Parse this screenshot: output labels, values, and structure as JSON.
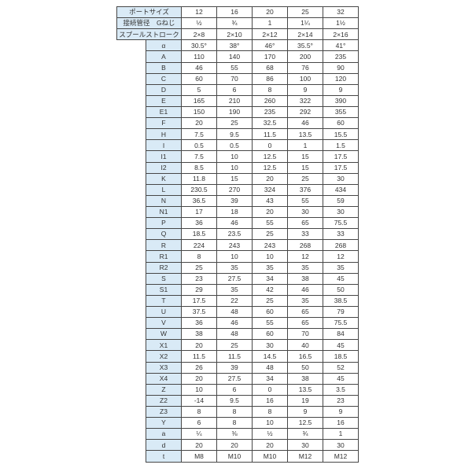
{
  "page": {
    "background": "#ffffff"
  },
  "table": {
    "border_color": "#474747",
    "label_background": "#d9eaf6",
    "text_color": "#333333",
    "header_rows": [
      {
        "label": "ポートサイズ",
        "values": [
          "12",
          "16",
          "20",
          "25",
          "32"
        ]
      },
      {
        "label": "接続管径　Gねじ",
        "values": [
          "½",
          "¾",
          "1",
          "1¼",
          "1½"
        ]
      },
      {
        "label": "スプールストローク",
        "values": [
          "2×8",
          "2×10",
          "2×12",
          "2×14",
          "2×16"
        ]
      }
    ],
    "rows": [
      {
        "label": "α",
        "values": [
          "30.5°",
          "38°",
          "46°",
          "35.5°",
          "41°"
        ]
      },
      {
        "label": "A",
        "values": [
          "110",
          "140",
          "170",
          "200",
          "235"
        ]
      },
      {
        "label": "B",
        "values": [
          "46",
          "55",
          "68",
          "76",
          "90"
        ]
      },
      {
        "label": "C",
        "values": [
          "60",
          "70",
          "86",
          "100",
          "120"
        ]
      },
      {
        "label": "D",
        "values": [
          "5",
          "6",
          "8",
          "9",
          "9"
        ]
      },
      {
        "label": "E",
        "values": [
          "165",
          "210",
          "260",
          "322",
          "390"
        ]
      },
      {
        "label": "E1",
        "values": [
          "150",
          "190",
          "235",
          "292",
          "355"
        ]
      },
      {
        "label": "F",
        "values": [
          "20",
          "25",
          "32.5",
          "46",
          "60"
        ]
      },
      {
        "label": "H",
        "values": [
          "7.5",
          "9.5",
          "11.5",
          "13.5",
          "15.5"
        ]
      },
      {
        "label": "I",
        "values": [
          "0.5",
          "0.5",
          "0",
          "1",
          "1.5"
        ]
      },
      {
        "label": "I1",
        "values": [
          "7.5",
          "10",
          "12.5",
          "15",
          "17.5"
        ]
      },
      {
        "label": "I2",
        "values": [
          "8.5",
          "10",
          "12.5",
          "15",
          "17.5"
        ]
      },
      {
        "label": "K",
        "values": [
          "11.8",
          "15",
          "20",
          "25",
          "30"
        ]
      },
      {
        "label": "L",
        "values": [
          "230.5",
          "270",
          "324",
          "376",
          "434"
        ]
      },
      {
        "label": "N",
        "values": [
          "36.5",
          "39",
          "43",
          "55",
          "59"
        ]
      },
      {
        "label": "N1",
        "values": [
          "17",
          "18",
          "20",
          "30",
          "30"
        ]
      },
      {
        "label": "P",
        "values": [
          "36",
          "46",
          "55",
          "65",
          "75.5"
        ]
      },
      {
        "label": "Q",
        "values": [
          "18.5",
          "23.5",
          "25",
          "33",
          "33"
        ]
      },
      {
        "label": "R",
        "values": [
          "224",
          "243",
          "243",
          "268",
          "268"
        ]
      },
      {
        "label": "R1",
        "values": [
          "8",
          "10",
          "10",
          "12",
          "12"
        ]
      },
      {
        "label": "R2",
        "values": [
          "25",
          "35",
          "35",
          "35",
          "35"
        ]
      },
      {
        "label": "S",
        "values": [
          "23",
          "27.5",
          "34",
          "38",
          "45"
        ]
      },
      {
        "label": "S1",
        "values": [
          "29",
          "35",
          "42",
          "46",
          "50"
        ]
      },
      {
        "label": "T",
        "values": [
          "17.5",
          "22",
          "25",
          "35",
          "38.5"
        ]
      },
      {
        "label": "U",
        "values": [
          "37.5",
          "48",
          "60",
          "65",
          "79"
        ]
      },
      {
        "label": "V",
        "values": [
          "36",
          "46",
          "55",
          "65",
          "75.5"
        ]
      },
      {
        "label": "W",
        "values": [
          "38",
          "48",
          "60",
          "70",
          "84"
        ]
      },
      {
        "label": "X1",
        "values": [
          "20",
          "25",
          "30",
          "40",
          "45"
        ]
      },
      {
        "label": "X2",
        "values": [
          "11.5",
          "11.5",
          "14.5",
          "16.5",
          "18.5"
        ]
      },
      {
        "label": "X3",
        "values": [
          "26",
          "39",
          "48",
          "50",
          "52"
        ]
      },
      {
        "label": "X4",
        "values": [
          "20",
          "27.5",
          "34",
          "38",
          "45"
        ]
      },
      {
        "label": "Z",
        "values": [
          "10",
          "6",
          "0",
          "13.5",
          "3.5"
        ]
      },
      {
        "label": "Z2",
        "values": [
          "-14",
          "9.5",
          "16",
          "19",
          "23"
        ]
      },
      {
        "label": "Z3",
        "values": [
          "8",
          "8",
          "8",
          "9",
          "9"
        ]
      },
      {
        "label": "Y",
        "values": [
          "6",
          "8",
          "10",
          "12.5",
          "16"
        ]
      },
      {
        "label": "a",
        "values": [
          "¼",
          "⅜",
          "½",
          "¾",
          "1"
        ]
      },
      {
        "label": "d",
        "values": [
          "20",
          "20",
          "20",
          "30",
          "30"
        ]
      },
      {
        "label": "t",
        "values": [
          "M8",
          "M10",
          "M10",
          "M12",
          "M12"
        ]
      }
    ]
  }
}
